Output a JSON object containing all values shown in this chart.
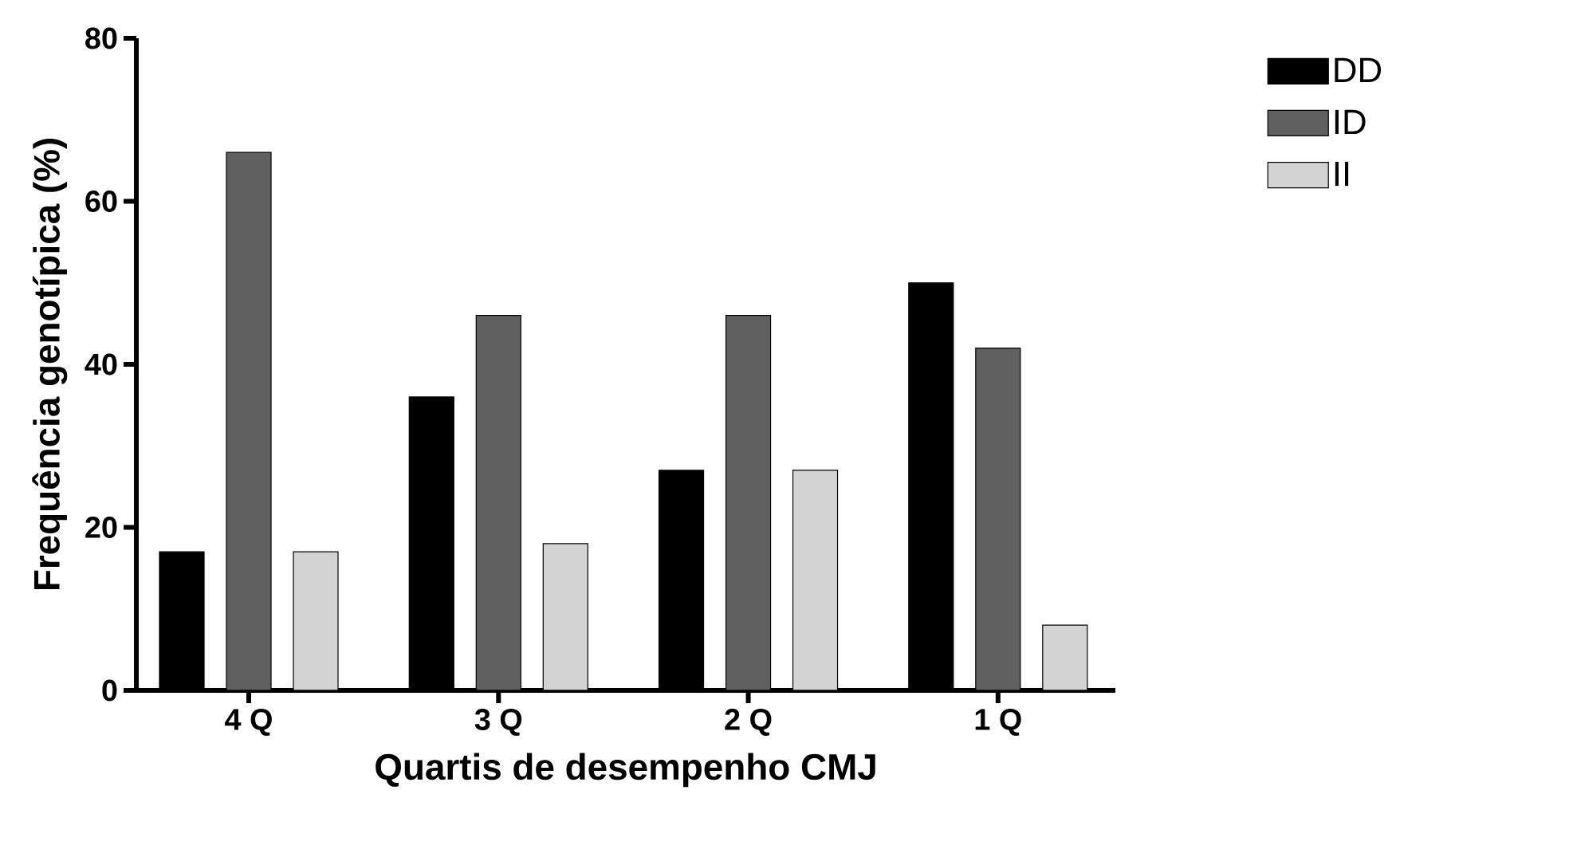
{
  "chart_data": {
    "type": "bar",
    "xlabel": "Quartis de desempenho CMJ",
    "ylabel": "Frequência genotípica (%)",
    "categories": [
      "4 Q",
      "3 Q",
      "2 Q",
      "1 Q"
    ],
    "series": [
      {
        "name": "DD",
        "color": "#000000",
        "values": [
          17,
          36,
          27,
          50
        ]
      },
      {
        "name": "ID",
        "color": "#606060",
        "values": [
          66,
          46,
          46,
          42
        ]
      },
      {
        "name": "II",
        "color": "#d3d3d3",
        "values": [
          17,
          18,
          27,
          8
        ]
      }
    ],
    "ylim": [
      0,
      80
    ],
    "yticks": [
      0,
      20,
      40,
      60,
      80
    ],
    "grid": false,
    "legend": "top right"
  }
}
